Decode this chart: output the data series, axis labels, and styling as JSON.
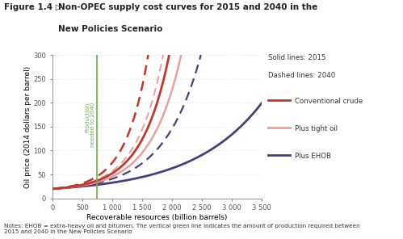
{
  "xlabel": "Recoverable resources (billion barrels)",
  "ylabel": "Oil price (2014 dollars per barrel)",
  "xlim": [
    0,
    3500
  ],
  "ylim": [
    0,
    300
  ],
  "xticks": [
    0,
    500,
    1000,
    1500,
    2000,
    2500,
    3000,
    3500
  ],
  "xtick_labels": [
    "0",
    "500",
    "1 000",
    "1 500",
    "2 000",
    "2 500",
    "3 000",
    "3 500"
  ],
  "yticks": [
    0,
    50,
    100,
    150,
    200,
    250,
    300
  ],
  "ytick_labels": [
    "0",
    "50",
    "100",
    "150",
    "200",
    "250",
    "300"
  ],
  "green_line_x": 750,
  "green_line_label": "Production\nneeded to 2040",
  "green_line_color": "#6ab04c",
  "colors": {
    "conv": "#c0392b",
    "tight": "#e8a0a0",
    "ehob": "#4a3f7a"
  },
  "curve_params": {
    "conv_2015": {
      "x_end": 1950,
      "y_end": 300,
      "y0": 20,
      "k": 4.2
    },
    "tight_2015": {
      "x_end": 2150,
      "y_end": 300,
      "y0": 20,
      "k": 4.2
    },
    "ehob_2015": {
      "x_end": 3500,
      "y_end": 200,
      "y0": 20,
      "k": 3.0
    },
    "conv_2040": {
      "x_end": 1600,
      "y_end": 300,
      "y0": 20,
      "k": 4.2
    },
    "tight_2040": {
      "x_end": 1850,
      "y_end": 300,
      "y0": 20,
      "k": 4.2
    },
    "ehob_2040": {
      "x_end": 2480,
      "y_end": 300,
      "y0": 20,
      "k": 4.0
    }
  },
  "legend_solid_label": "Solid lines: 2015",
  "legend_dashed_label": "Dashed lines: 2040",
  "legend_conv": "Conventional crude",
  "legend_tight": "Plus tight oil",
  "legend_ehob": "Plus EHOB",
  "note": "Notes: EHOB = extra-heavy oil and bitumen. The vertical green line indicates the amount of production required between\n2015 and 2040 in the New Policies Scenario",
  "background_color": "#ffffff",
  "grid_color": "#c8c8c8",
  "title_prefix": "Figure 1.4",
  "title_arrow": "▷",
  "title_line1": "Non-OPEC supply cost curves for 2015 and 2040 in the",
  "title_line2": "New Policies Scenario"
}
